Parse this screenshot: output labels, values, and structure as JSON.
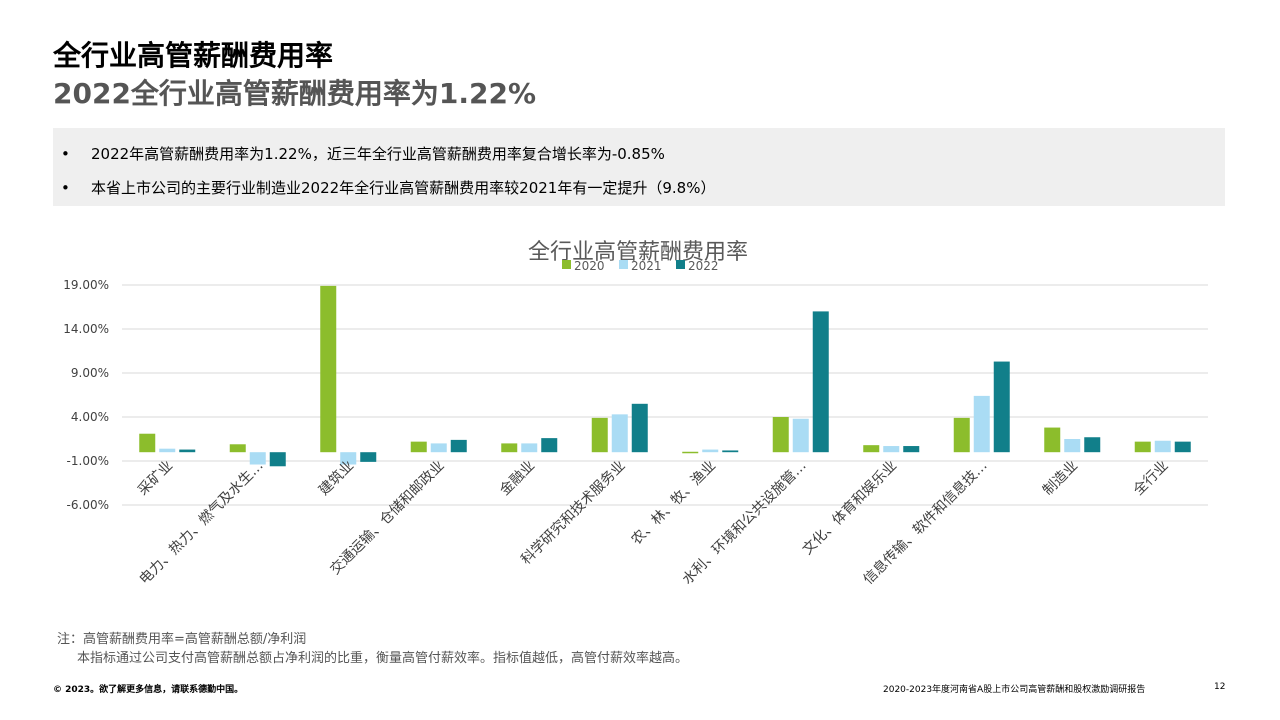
{
  "header": {
    "title": "全行业高管薪酬费用率",
    "subtitle": "2022全行业高管薪酬费用率为1.22%"
  },
  "summary": {
    "bullet_symbol": "•",
    "bullets": [
      "2022年高管薪酬费用率为1.22%，近三年全行业高管薪酬费用率复合增长率为-0.85%",
      "本省上市公司的主要行业制造业2022年全行业高管薪酬费用率较2021年有一定提升（9.8%）"
    ]
  },
  "colors": {
    "series_2020": "#8cbd2c",
    "series_2021": "#aadcf4",
    "series_2022": "#117f8a",
    "summary_bg": "#efefef",
    "subtitle": "#555555"
  },
  "chart_data": {
    "type": "bar",
    "title": "全行业高管薪酬费用率",
    "legend_position": "top",
    "grid": true,
    "ylim": [
      -6,
      19
    ],
    "y_ticks": [
      "19.00%",
      "14.00%",
      "9.00%",
      "4.00%",
      "-1.00%",
      "-6.00%"
    ],
    "y_tick_values": [
      19,
      14,
      9,
      4,
      -1,
      -6
    ],
    "categories": [
      "采矿业",
      "电力、热力、燃气及水生…",
      "建筑业",
      "交通运输、仓储和邮政业",
      "金融业",
      "科学研究和技术服务业",
      "农、林、牧、渔业",
      "水利、环境和公共设施管…",
      "文化、体育和娱乐业",
      "信息传输、软件和信息技…",
      "制造业",
      "全行业"
    ],
    "series": [
      {
        "name": "2020",
        "values": [
          2.1,
          0.9,
          18.9,
          1.2,
          1.0,
          3.9,
          0.05,
          4.0,
          0.8,
          3.9,
          2.8,
          1.2
        ]
      },
      {
        "name": "2021",
        "values": [
          0.4,
          -1.4,
          -1.4,
          1.0,
          1.0,
          4.3,
          0.3,
          3.8,
          0.7,
          6.4,
          1.5,
          1.3
        ]
      },
      {
        "name": "2022",
        "values": [
          0.3,
          -1.6,
          -1.1,
          1.4,
          1.6,
          5.5,
          0.2,
          16.0,
          0.7,
          10.3,
          1.7,
          1.2
        ]
      }
    ]
  },
  "note": {
    "line1": "注：高管薪酬费用率=高管薪酬总额/净利润",
    "line2": "本指标通过公司支付高管薪酬总额占净利润的比重，衡量高管付薪效率。指标值越低，高管付薪效率越高。"
  },
  "footer": {
    "copyright": "© 2023。欲了解更多信息，请联系德勤中国。",
    "report_title": "2020-2023年度河南省A股上市公司高管薪酬和股权激励调研报告",
    "page_number": "12"
  }
}
